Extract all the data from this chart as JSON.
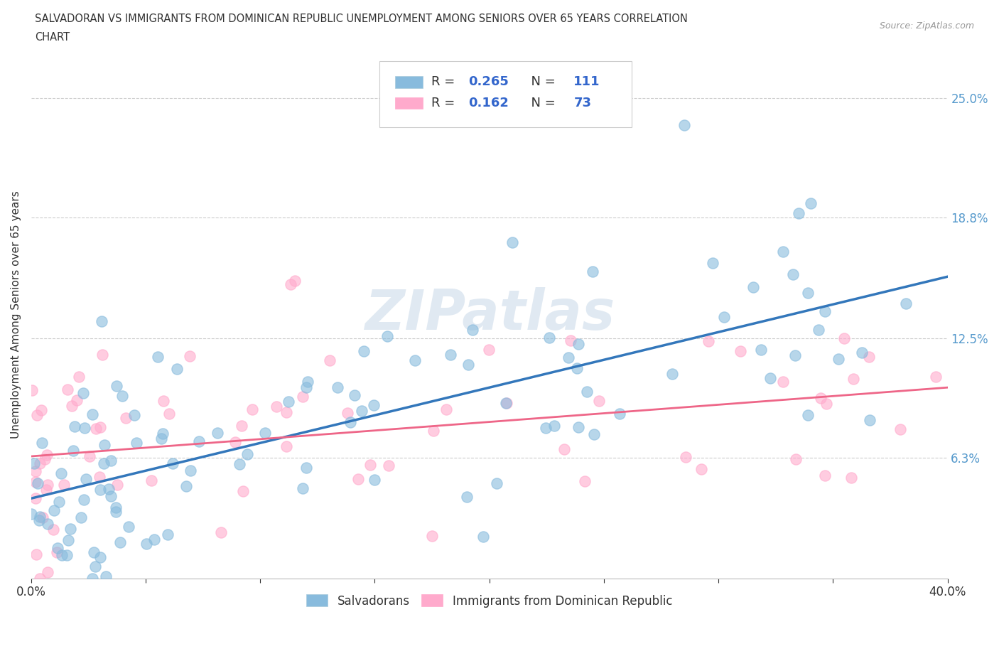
{
  "title_line1": "SALVADORAN VS IMMIGRANTS FROM DOMINICAN REPUBLIC UNEMPLOYMENT AMONG SENIORS OVER 65 YEARS CORRELATION",
  "title_line2": "CHART",
  "source": "Source: ZipAtlas.com",
  "ylabel": "Unemployment Among Seniors over 65 years",
  "xlim": [
    0.0,
    0.4
  ],
  "ylim": [
    0.0,
    0.275
  ],
  "xticks": [
    0.0,
    0.05,
    0.1,
    0.15,
    0.2,
    0.25,
    0.3,
    0.35,
    0.4
  ],
  "xtick_labels": [
    "0.0%",
    "",
    "",
    "",
    "",
    "",
    "",
    "",
    "40.0%"
  ],
  "ytick_right_labels": [
    "6.3%",
    "12.5%",
    "18.8%",
    "25.0%"
  ],
  "ytick_right_values": [
    0.063,
    0.125,
    0.188,
    0.25
  ],
  "blue_color": "#88bbdd",
  "pink_color": "#ffaacc",
  "blue_line_color": "#3377bb",
  "pink_line_color": "#ee6688",
  "ytick_color": "#5599cc",
  "legend_text_color": "#333333",
  "legend_value_color": "#3366cc",
  "watermark": "ZIPatlas",
  "background_color": "#ffffff",
  "R1": 0.265,
  "N1": 111,
  "R2": 0.162,
  "N2": 73
}
